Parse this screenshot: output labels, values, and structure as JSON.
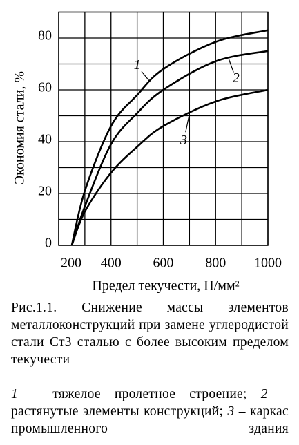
{
  "chart_data": {
    "type": "line",
    "ylabel": "Экономия стали, %",
    "xlabel": "Предел текучести, Н/мм²",
    "xlim": [
      200,
      1000
    ],
    "xticks": [
      200,
      400,
      600,
      800,
      1000
    ],
    "ylim": [
      0,
      90
    ],
    "yticks": [
      0,
      20,
      40,
      60,
      80
    ],
    "grid": true,
    "series": [
      {
        "name": "1",
        "color": "#000000",
        "x": [
          250,
          300,
          400,
          500,
          600,
          800,
          1000
        ],
        "values": [
          0,
          21,
          46,
          58,
          68,
          78.5,
          83
        ]
      },
      {
        "name": "2",
        "color": "#000000",
        "x": [
          250,
          300,
          400,
          500,
          600,
          800,
          1000
        ],
        "values": [
          0,
          15,
          39,
          51,
          60,
          71,
          75
        ]
      },
      {
        "name": "3",
        "color": "#000000",
        "x": [
          250,
          300,
          400,
          500,
          600,
          800,
          1000
        ],
        "values": [
          0,
          13,
          28,
          38,
          46,
          55.5,
          60
        ]
      }
    ]
  },
  "caption": "Рис.1.1. Снижение массы элементов металлоконструкций при замене углеродистой стали Ст3 сталью с более высоким пределом текучести",
  "notes": [
    "– тяжелое пролетное строение;",
    "– растянутые элементы конструкций;",
    "– каркас промышленного здания"
  ]
}
